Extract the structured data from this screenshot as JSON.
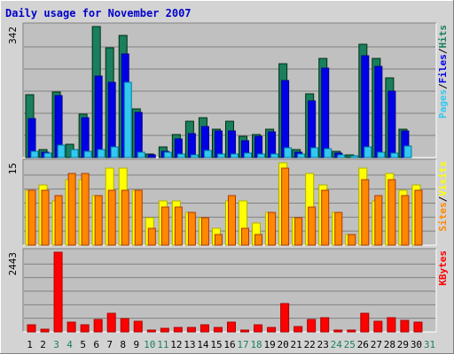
{
  "chart_data": {
    "title": "Daily usage for November 2007",
    "type": "bar",
    "categories": [
      "1",
      "2",
      "3",
      "4",
      "5",
      "6",
      "7",
      "8",
      "9",
      "10",
      "11",
      "12",
      "13",
      "14",
      "15",
      "16",
      "17",
      "18",
      "19",
      "20",
      "21",
      "22",
      "23",
      "24",
      "25",
      "26",
      "27",
      "28",
      "29",
      "30",
      "31"
    ],
    "weekend_days": [
      "3",
      "4",
      "10",
      "11",
      "17",
      "18",
      "24",
      "25",
      "31"
    ],
    "colors": {
      "title": "#0000cc",
      "hits": "#1a7f5e",
      "files": "#0000e6",
      "pages": "#33c8f0",
      "visits": "#ffff00",
      "sites": "#ff8800",
      "kbytes": "#ff0000",
      "weekday_label": "#000000",
      "weekend_label": "#1a7f5e",
      "plot_bg": "#c0c0c0",
      "frame_bg": "#d3d3d3"
    },
    "panels": [
      {
        "name": "hits-files-pages",
        "max_label": "342",
        "ymax": 342,
        "legend": [
          {
            "text": "Hits",
            "color": "#1a7f5e"
          },
          {
            "text": "/",
            "color": "#000000"
          },
          {
            "text": "Files",
            "color": "#0000e6"
          },
          {
            "text": "/",
            "color": "#000000"
          },
          {
            "text": "Pages",
            "color": "#33c8f0"
          }
        ],
        "series": [
          {
            "name": "Hits",
            "color": "#1a7f5e",
            "values": [
              163,
              20,
              172,
              35,
              113,
              342,
              287,
              320,
              127,
              10,
              27,
              60,
              95,
              104,
              74,
              95,
              55,
              59,
              74,
              246,
              20,
              167,
              258,
              16,
              6,
              296,
              258,
              207,
              74,
              0,
              0
            ]
          },
          {
            "name": "Files",
            "color": "#0000e6",
            "values": [
              101,
              15,
              162,
              0,
              104,
              212,
              196,
              270,
              118,
              7,
              17,
              49,
              63,
              82,
              70,
              70,
              44,
              55,
              66,
              202,
              13,
              148,
              233,
              11,
              0,
              265,
              237,
              174,
              70,
              0,
              0
            ]
          },
          {
            "name": "Pages",
            "color": "#33c8f0",
            "values": [
              17,
              11,
              32,
              20,
              17,
              21,
              28,
              196,
              13,
              0,
              13,
              10,
              8,
              18,
              10,
              10,
              12,
              10,
              9,
              25,
              10,
              26,
              24,
              7,
              2,
              28,
              14,
              11,
              30,
              0,
              0
            ]
          }
        ]
      },
      {
        "name": "visits-sites",
        "max_label": "15",
        "ymax": 15,
        "legend": [
          {
            "text": "Visits",
            "color": "#ffff00"
          },
          {
            "text": "/",
            "color": "#000000"
          },
          {
            "text": "Sites",
            "color": "#ff8800"
          }
        ],
        "series": [
          {
            "name": "Visits",
            "color": "#ffff00",
            "values": [
              10,
              11,
              8,
              12,
              12,
              9,
              14,
              14,
              10,
              5,
              8,
              8,
              6,
              5,
              3,
              8,
              8,
              4,
              6,
              15,
              5,
              13,
              11,
              6,
              2,
              14,
              8,
              13,
              10,
              11,
              0
            ]
          },
          {
            "name": "Sites",
            "color": "#ff8800",
            "values": [
              10,
              10,
              9,
              13,
              13,
              9,
              10,
              10,
              10,
              3,
              7,
              7,
              6,
              5,
              2,
              9,
              3,
              2,
              6,
              14,
              5,
              7,
              10,
              6,
              2,
              12,
              9,
              12,
              9,
              10,
              0
            ]
          }
        ]
      },
      {
        "name": "kbytes",
        "max_label": "2443",
        "ymax": 2443,
        "legend": [
          {
            "text": "KBytes",
            "color": "#ff0000"
          }
        ],
        "series": [
          {
            "name": "KBytes",
            "color": "#ff0000",
            "values": [
              230,
              90,
              2443,
              310,
              230,
              390,
              580,
              400,
              320,
              40,
              100,
              140,
              130,
              230,
              140,
              300,
              40,
              230,
              130,
              860,
              160,
              370,
              430,
              60,
              20,
              560,
              330,
              430,
              340,
              300,
              0
            ]
          }
        ]
      }
    ]
  }
}
